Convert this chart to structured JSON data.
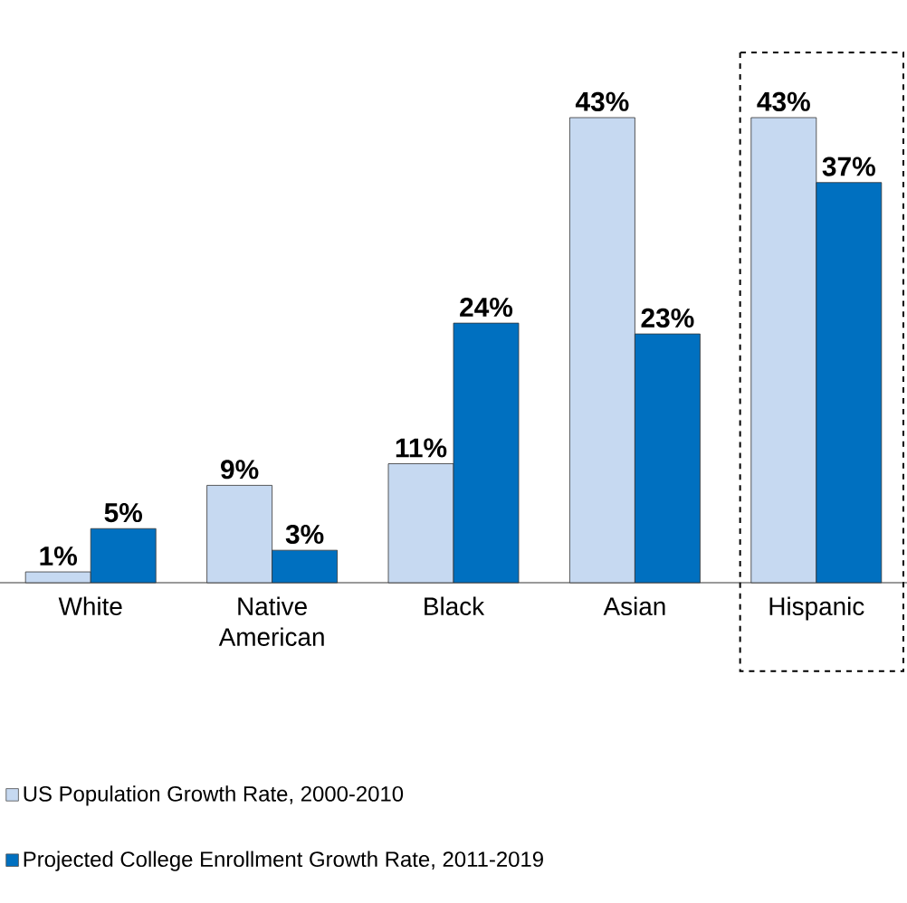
{
  "chart_data": {
    "type": "bar",
    "categories": [
      "White",
      "Native American",
      "Black",
      "Asian",
      "Hispanic"
    ],
    "series": [
      {
        "name": "US Population Growth Rate, 2000-2010",
        "color": "#c6d9f1",
        "values": [
          1,
          9,
          11,
          43,
          43
        ],
        "value_labels": [
          "1%",
          "9%",
          "11%",
          "43%",
          "43%"
        ]
      },
      {
        "name": "Projected College Enrollment Growth Rate, 2011-2019",
        "color": "#0070c0",
        "values": [
          5,
          3,
          24,
          23,
          37
        ],
        "value_labels": [
          "5%",
          "3%",
          "24%",
          "23%",
          "37%"
        ]
      }
    ],
    "legend": "bottom"
  }
}
